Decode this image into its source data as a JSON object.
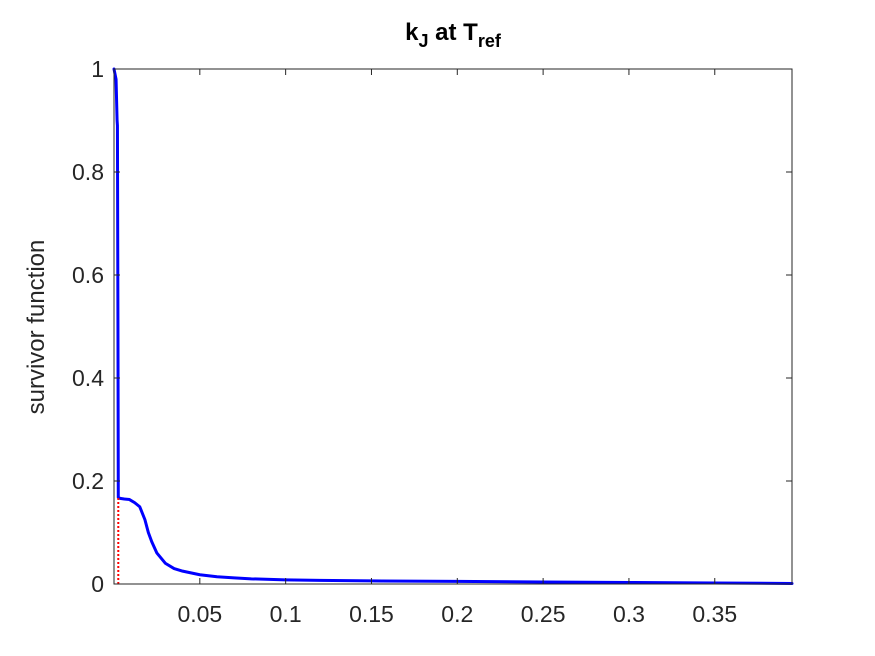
{
  "chart_data": {
    "type": "line",
    "title": {
      "main1": "k",
      "sub1": "J",
      "main2": " at T",
      "sub2": "ref"
    },
    "xlabel": "",
    "ylabel": "survivor function",
    "xlim": [
      0,
      0.395
    ],
    "ylim": [
      0,
      1
    ],
    "xticks": [
      0.05,
      0.1,
      0.15,
      0.2,
      0.25,
      0.3,
      0.35
    ],
    "xtick_labels": [
      "0.05",
      "0.1",
      "0.15",
      "0.2",
      "0.25",
      "0.3",
      "0.35"
    ],
    "yticks": [
      0,
      0.2,
      0.4,
      0.6,
      0.8,
      1
    ],
    "ytick_labels": [
      "0",
      "0.2",
      "0.4",
      "0.6",
      "0.8",
      "1"
    ],
    "grid": false,
    "colors": {
      "series": "#0000ff",
      "marker": "#ff0000",
      "axes": "#262626"
    },
    "series": [
      {
        "x": [
          0,
          0.0012,
          0.0018,
          0.002,
          0.0023,
          0.0025,
          0.003,
          0.004,
          0.006,
          0.009,
          0.012,
          0.015,
          0.018,
          0.02,
          0.022,
          0.025,
          0.03,
          0.035,
          0.04,
          0.05,
          0.06,
          0.07,
          0.08,
          0.1,
          0.12,
          0.15,
          0.2,
          0.25,
          0.3,
          0.35,
          0.395
        ],
        "y": [
          1.0,
          0.98,
          0.9,
          0.89,
          0.5,
          0.168,
          0.167,
          0.166,
          0.165,
          0.164,
          0.158,
          0.15,
          0.125,
          0.1,
          0.082,
          0.06,
          0.04,
          0.03,
          0.025,
          0.018,
          0.014,
          0.012,
          0.01,
          0.008,
          0.007,
          0.006,
          0.005,
          0.004,
          0.003,
          0.002,
          0.001
        ]
      }
    ],
    "marker_line": {
      "x": 0.0025,
      "y_from": 0,
      "y_to": 0.167
    }
  }
}
